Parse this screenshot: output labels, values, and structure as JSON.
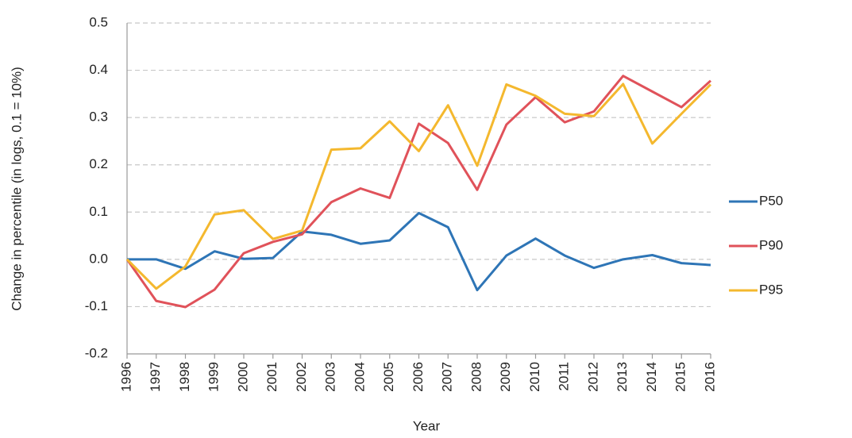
{
  "chart_data": {
    "type": "line",
    "x_label": "Year",
    "y_label": "Change in percentile (in logs, 0.1 = 10%)",
    "x": [
      1996,
      1997,
      1998,
      1999,
      2000,
      2001,
      2002,
      2003,
      2004,
      2005,
      2006,
      2007,
      2008,
      2009,
      2010,
      2011,
      2012,
      2013,
      2014,
      2015,
      2016
    ],
    "xlim": [
      1996,
      2016
    ],
    "xticks": [
      1996,
      1997,
      1998,
      1999,
      2000,
      2001,
      2002,
      2003,
      2004,
      2005,
      2006,
      2007,
      2008,
      2009,
      2010,
      2011,
      2012,
      2013,
      2014,
      2015,
      2016
    ],
    "ylim": [
      -0.2,
      0.5
    ],
    "yticks": [
      -0.2,
      -0.1,
      {
        "value": 0,
        "label": "0.0"
      },
      0.1,
      0.2,
      0.3,
      0.4,
      0.5
    ],
    "grid": true,
    "legend": "right",
    "series": [
      {
        "name": "P50",
        "color": "#2e75b6",
        "values": [
          0,
          0,
          -0.02,
          0.017,
          0.001,
          0.003,
          0.059,
          0.052,
          0.033,
          0.04,
          0.098,
          0.068,
          -0.065,
          0.008,
          0.044,
          0.008,
          -0.018,
          0,
          0.009,
          -0.008,
          -0.012
        ]
      },
      {
        "name": "P90",
        "color": "#e0525a",
        "values": [
          0,
          -0.088,
          -0.101,
          -0.064,
          0.013,
          0.037,
          0.053,
          0.121,
          0.15,
          0.13,
          0.287,
          0.246,
          0.147,
          0.285,
          0.343,
          0.29,
          0.313,
          0.388,
          0.355,
          0.322,
          0.378
        ]
      },
      {
        "name": "P95",
        "color": "#f4b82e",
        "values": [
          0,
          -0.062,
          -0.015,
          0.095,
          0.104,
          0.043,
          0.061,
          0.232,
          0.235,
          0.292,
          0.229,
          0.326,
          0.198,
          0.37,
          0.346,
          0.308,
          0.303,
          0.371,
          0.245,
          0.308,
          0.37
        ]
      }
    ]
  }
}
